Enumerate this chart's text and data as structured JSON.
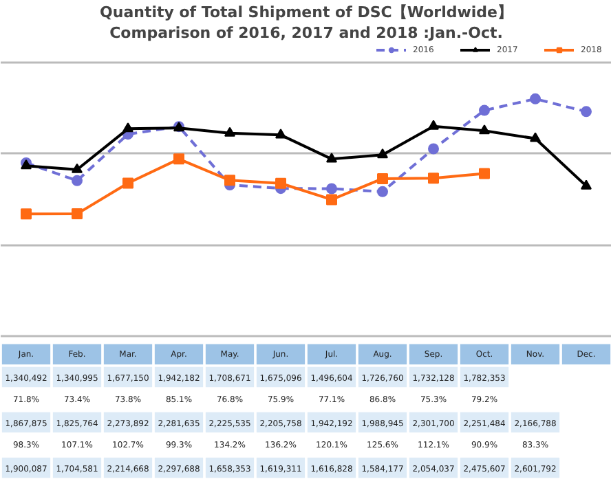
{
  "chart_data": {
    "type": "line",
    "title": "Quantity of Total Shipment of DSC【Worldwide】",
    "subtitle": "Comparison of 2016, 2017 and 2018 :Jan.-Oct.",
    "categories": [
      "Jan.",
      "Feb.",
      "Mar.",
      "Apr.",
      "May.",
      "Jun.",
      "Jul.",
      "Aug.",
      "Sep.",
      "Oct.",
      "Nov.",
      "Dec."
    ],
    "series": [
      {
        "name": "2016",
        "color": "#6f6fd6",
        "marker": "circle",
        "line_style": "dashed",
        "values": [
          1900087,
          1704581,
          2214668,
          2297688,
          1658353,
          1619311,
          1616828,
          1584177,
          2054037,
          2475607,
          2601792,
          2462000
        ],
        "value_labels": [
          "1,900,087",
          "1,704,581",
          "2,214,668",
          "2,297,688",
          "1,658,353",
          "1,619,311",
          "1,616,828",
          "1,584,177",
          "2,054,037",
          "2,475,607",
          "2,601,792",
          null
        ]
      },
      {
        "name": "2017",
        "color": "#000000",
        "marker": "triangle",
        "line_style": "solid",
        "values": [
          1867875,
          1825764,
          2273892,
          2281635,
          2225535,
          2205758,
          1942192,
          1988945,
          2301700,
          2251484,
          2166788,
          1646000
        ],
        "value_labels": [
          "1,867,875",
          "1,825,764",
          "2,273,892",
          "2,281,635",
          "2,225,535",
          "2,205,758",
          "1,942,192",
          "1,988,945",
          "2,301,700",
          "2,251,484",
          "2,166,788",
          null
        ]
      },
      {
        "name": "2018",
        "color": "#ff6a13",
        "marker": "square",
        "line_style": "solid",
        "values": [
          1340492,
          1340995,
          1677150,
          1942182,
          1708671,
          1675096,
          1496604,
          1726760,
          1732128,
          1782353,
          null,
          null
        ],
        "value_labels": [
          "1,340,492",
          "1,340,995",
          "1,677,150",
          "1,942,182",
          "1,708,671",
          "1,675,096",
          "1,496,604",
          "1,726,760",
          "1,732,128",
          "1,782,353",
          null,
          null
        ]
      }
    ],
    "annotations": [
      "71.8%",
      "73.4%",
      "73.8%",
      "85.1%",
      "76.8%",
      "75.9%",
      "77.1%",
      "86.8%",
      "75.3%",
      "79.2%",
      "98.3%",
      "107.1%",
      "102.7%",
      "99.3%",
      "134.2%",
      "136.2%",
      "120.1%",
      "125.6%",
      "112.1%",
      "90.9%",
      "83.3%"
    ],
    "ylim": [
      0,
      3000000
    ],
    "yticks": [
      {
        "value": 0,
        "label": null
      },
      {
        "value": 1000000,
        "label": null
      },
      {
        "value": 2000000,
        "label": null
      },
      {
        "value": 3000000,
        "label": null
      }
    ],
    "grid": "y",
    "legend": "top right",
    "tick_labels": false
  }
}
